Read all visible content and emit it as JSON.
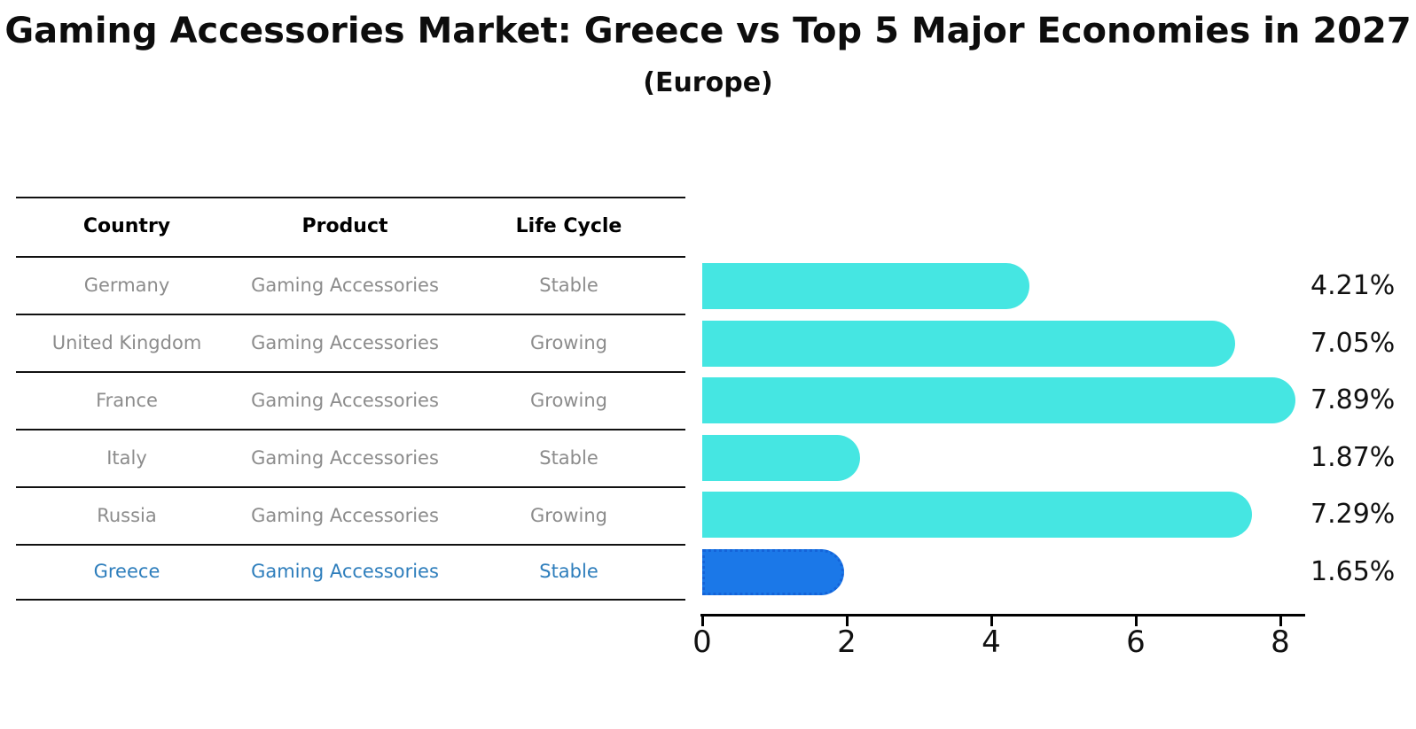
{
  "title": "Gaming Accessories Market: Greece vs Top 5 Major Economies in 2027",
  "subtitle": "(Europe)",
  "colors": {
    "bar": "#45e6e2",
    "highlight_bar": "#1b78e8",
    "highlight_border": "#1463d8",
    "highlight_text": "#2e7ebc",
    "row_text": "#8c8c8c",
    "header_text": "#000000",
    "axis": "#000000"
  },
  "table": {
    "headers": [
      "Country",
      "Product",
      "Life Cycle"
    ],
    "rows": [
      {
        "country": "Germany",
        "product": "Gaming Accessories",
        "life_cycle": "Stable",
        "highlight": false
      },
      {
        "country": "United Kingdom",
        "product": "Gaming Accessories",
        "life_cycle": "Growing",
        "highlight": false
      },
      {
        "country": "France",
        "product": "Gaming Accessories",
        "life_cycle": "Growing",
        "highlight": false
      },
      {
        "country": "Italy",
        "product": "Gaming Accessories",
        "life_cycle": "Stable",
        "highlight": false
      },
      {
        "country": "Russia",
        "product": "Gaming Accessories",
        "life_cycle": "Growing",
        "highlight": false
      },
      {
        "country": "Greece",
        "product": "Gaming Accessories",
        "life_cycle": "Stable",
        "highlight": true
      }
    ]
  },
  "chart_data": {
    "type": "bar",
    "orientation": "horizontal",
    "categories": [
      "Germany",
      "United Kingdom",
      "France",
      "Italy",
      "Russia",
      "Greece"
    ],
    "values": [
      4.21,
      7.05,
      7.89,
      1.87,
      7.29,
      1.65
    ],
    "value_labels": [
      "4.21%",
      "7.05%",
      "7.89%",
      "1.87%",
      "7.29%",
      "1.65%"
    ],
    "highlight_index": 5,
    "title": "Gaming Accessories Market: Greece vs Top 5 Major Economies in 2027 (Europe)",
    "xlabel": "",
    "ylabel": "",
    "xlim": [
      0,
      8.35
    ],
    "x_ticks": [
      0,
      2,
      4,
      6,
      8
    ],
    "grid": false,
    "legend": false
  }
}
